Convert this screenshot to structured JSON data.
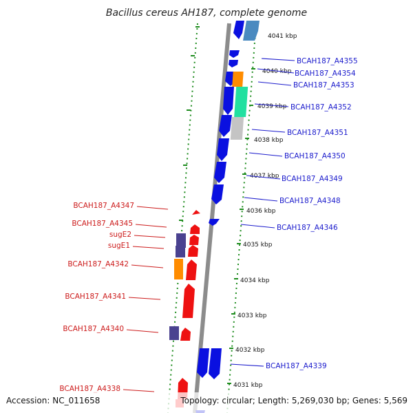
{
  "title": "Bacillus cereus AH187, complete genome",
  "footer": {
    "accession": "Accession: NC_011658",
    "topology": "Topology: circular; Length: 5,269,030 bp; Genes: 5,569"
  },
  "colors": {
    "forward_gene": "#0a10e0",
    "reverse_gene": "#ee1111",
    "backbone": "#888888",
    "ticks": "#1a8a1a",
    "orange": "#ff8c00",
    "teal": "#22e0a0",
    "grey": "#c4c4c4",
    "purple": "#4a4290",
    "steel": "#4a8ac0"
  },
  "scale_labels": [
    {
      "text": "4041 kbp"
    },
    {
      "text": "4040 kbp"
    },
    {
      "text": "4039 kbp"
    },
    {
      "text": "4038 kbp"
    },
    {
      "text": "4037 kbp"
    },
    {
      "text": "4036 kbp"
    },
    {
      "text": "4035 kbp"
    },
    {
      "text": "4034 kbp"
    },
    {
      "text": "4033 kbp"
    },
    {
      "text": "4032 kbp"
    },
    {
      "text": "4031 kbp"
    }
  ],
  "right_labels": [
    {
      "text": "BCAH187_A4355"
    },
    {
      "text": "BCAH187_A4354"
    },
    {
      "text": "BCAH187_A4353"
    },
    {
      "text": "BCAH187_A4352"
    },
    {
      "text": "BCAH187_A4351"
    },
    {
      "text": "BCAH187_A4350"
    },
    {
      "text": "BCAH187_A4349"
    },
    {
      "text": "BCAH187_A4348"
    },
    {
      "text": "BCAH187_A4346"
    },
    {
      "text": "BCAH187_A4339"
    }
  ],
  "left_labels": [
    {
      "text": "BCAH187_A4347"
    },
    {
      "text": "BCAH187_A4345"
    },
    {
      "text": "sugE2"
    },
    {
      "text": "sugE1"
    },
    {
      "text": "BCAH187_A4342"
    },
    {
      "text": "BCAH187_A4341"
    },
    {
      "text": "BCAH187_A4340"
    },
    {
      "text": "BCAH187_A4338"
    }
  ]
}
